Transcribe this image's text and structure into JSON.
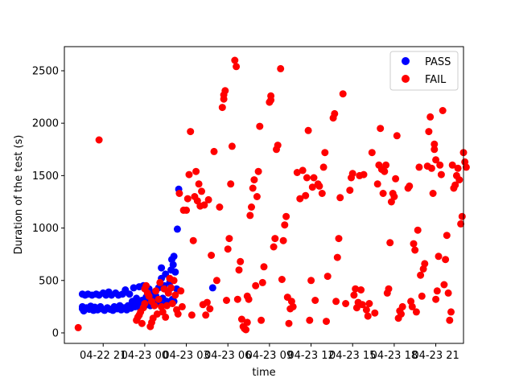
{
  "chart_data": {
    "type": "scatter",
    "title": "",
    "xlabel": "time",
    "ylabel": "Duration of the test (s)",
    "x_ticks": [
      "04-22 21",
      "04-23 00",
      "04-23 03",
      "04-23 06",
      "04-23 09",
      "04-23 12",
      "04-23 15",
      "04-23 18",
      "04-23 21"
    ],
    "x_tick_hours": [
      0,
      3,
      6,
      9,
      12,
      15,
      18,
      21,
      24
    ],
    "x_range_hours": [
      -2.8,
      26.0
    ],
    "y_ticks": [
      0,
      500,
      1000,
      1500,
      2000,
      2500
    ],
    "ylim": [
      -100,
      2730
    ],
    "legend": {
      "placement": "upper-right",
      "entries": [
        "PASS",
        "FAIL"
      ]
    },
    "series": [
      {
        "name": "PASS",
        "color": "#0000ff",
        "points": [
          [
            -1.5,
            230
          ],
          [
            -1.5,
            250
          ],
          [
            -1.5,
            370
          ],
          [
            -1.4,
            210
          ],
          [
            -1.3,
            360
          ],
          [
            -1.2,
            240
          ],
          [
            -1.1,
            370
          ],
          [
            -1.0,
            225
          ],
          [
            -0.9,
            255
          ],
          [
            -0.8,
            360
          ],
          [
            -0.7,
            215
          ],
          [
            -0.6,
            245
          ],
          [
            -0.5,
            370
          ],
          [
            -0.4,
            220
          ],
          [
            -0.3,
            360
          ],
          [
            -0.2,
            250
          ],
          [
            -0.1,
            230
          ],
          [
            0.0,
            380
          ],
          [
            0.1,
            215
          ],
          [
            0.2,
            360
          ],
          [
            0.3,
            240
          ],
          [
            0.4,
            390
          ],
          [
            0.5,
            225
          ],
          [
            0.6,
            360
          ],
          [
            0.7,
            215
          ],
          [
            0.8,
            250
          ],
          [
            0.9,
            380
          ],
          [
            1.0,
            230
          ],
          [
            1.1,
            360
          ],
          [
            1.2,
            260
          ],
          [
            1.3,
            220
          ],
          [
            1.4,
            370
          ],
          [
            1.5,
            240
          ],
          [
            1.6,
            410
          ],
          [
            1.7,
            220
          ],
          [
            1.8,
            260
          ],
          [
            1.9,
            370
          ],
          [
            2.0,
            235
          ],
          [
            2.1,
            300
          ],
          [
            2.2,
            430
          ],
          [
            2.3,
            250
          ],
          [
            2.4,
            330
          ],
          [
            2.5,
            280
          ],
          [
            2.6,
            440
          ],
          [
            2.7,
            230
          ],
          [
            2.8,
            310
          ],
          [
            2.9,
            450
          ],
          [
            3.0,
            260
          ],
          [
            3.1,
            340
          ],
          [
            3.2,
            290
          ],
          [
            3.3,
            420
          ],
          [
            3.4,
            260
          ],
          [
            3.5,
            320
          ],
          [
            3.6,
            380
          ],
          [
            3.7,
            270
          ],
          [
            3.8,
            350
          ],
          [
            3.9,
            300
          ],
          [
            4.0,
            430
          ],
          [
            4.1,
            280
          ],
          [
            4.2,
            520
          ],
          [
            4.2,
            620
          ],
          [
            4.3,
            330
          ],
          [
            4.4,
            450
          ],
          [
            4.5,
            560
          ],
          [
            4.6,
            300
          ],
          [
            4.7,
            390
          ],
          [
            4.8,
            480
          ],
          [
            4.9,
            600
          ],
          [
            4.95,
            700
          ],
          [
            5.0,
            320
          ],
          [
            5.05,
            650
          ],
          [
            5.1,
            730
          ],
          [
            5.2,
            580
          ],
          [
            5.3,
            420
          ],
          [
            5.35,
            990
          ],
          [
            5.45,
            1370
          ],
          [
            4.6,
            280
          ],
          [
            5.1,
            300
          ],
          [
            7.9,
            430
          ]
        ]
      },
      {
        "name": "FAIL",
        "color": "#ff0000",
        "points": [
          [
            -1.8,
            50
          ],
          [
            -0.3,
            1840
          ],
          [
            2.4,
            120
          ],
          [
            2.5,
            150
          ],
          [
            2.6,
            170
          ],
          [
            2.7,
            200
          ],
          [
            2.8,
            90
          ],
          [
            2.9,
            240
          ],
          [
            3.0,
            280
          ],
          [
            3.0,
            420
          ],
          [
            3.1,
            450
          ],
          [
            3.2,
            380
          ],
          [
            3.3,
            350
          ],
          [
            3.4,
            60
          ],
          [
            3.5,
            100
          ],
          [
            3.5,
            300
          ],
          [
            3.6,
            140
          ],
          [
            3.7,
            260
          ],
          [
            3.8,
            400
          ],
          [
            3.9,
            180
          ],
          [
            4.0,
            320
          ],
          [
            4.1,
            480
          ],
          [
            4.2,
            250
          ],
          [
            4.3,
            200
          ],
          [
            4.4,
            420
          ],
          [
            4.5,
            150
          ],
          [
            4.6,
            260
          ],
          [
            4.7,
            380
          ],
          [
            4.8,
            520
          ],
          [
            4.9,
            430
          ],
          [
            5.0,
            280
          ],
          [
            5.1,
            500
          ],
          [
            5.2,
            360
          ],
          [
            5.3,
            220
          ],
          [
            5.4,
            180
          ],
          [
            5.5,
            1330
          ],
          [
            5.6,
            400
          ],
          [
            5.7,
            250
          ],
          [
            5.8,
            1170
          ],
          [
            6.0,
            1170
          ],
          [
            6.1,
            1280
          ],
          [
            6.2,
            1510
          ],
          [
            6.3,
            1920
          ],
          [
            6.4,
            170
          ],
          [
            6.5,
            880
          ],
          [
            6.6,
            1300
          ],
          [
            6.7,
            1540
          ],
          [
            6.8,
            1260
          ],
          [
            6.9,
            1420
          ],
          [
            7.0,
            1210
          ],
          [
            7.1,
            1350
          ],
          [
            7.2,
            270
          ],
          [
            7.3,
            1220
          ],
          [
            7.4,
            170
          ],
          [
            7.5,
            290
          ],
          [
            7.6,
            1270
          ],
          [
            7.7,
            230
          ],
          [
            7.8,
            740
          ],
          [
            8.0,
            1730
          ],
          [
            8.2,
            500
          ],
          [
            8.4,
            1200
          ],
          [
            8.6,
            2150
          ],
          [
            8.7,
            2230
          ],
          [
            8.8,
            2310
          ],
          [
            8.9,
            310
          ],
          [
            9.0,
            800
          ],
          [
            9.1,
            900
          ],
          [
            9.2,
            1420
          ],
          [
            9.3,
            1780
          ],
          [
            9.5,
            2600
          ],
          [
            9.6,
            2540
          ],
          [
            9.7,
            320
          ],
          [
            9.8,
            600
          ],
          [
            9.9,
            680
          ],
          [
            10.0,
            130
          ],
          [
            10.1,
            60
          ],
          [
            10.2,
            40
          ],
          [
            10.3,
            30
          ],
          [
            10.4,
            100
          ],
          [
            10.5,
            320
          ],
          [
            10.6,
            1120
          ],
          [
            10.7,
            1200
          ],
          [
            10.8,
            1380
          ],
          [
            10.9,
            1460
          ],
          [
            11.0,
            450
          ],
          [
            11.1,
            1300
          ],
          [
            11.2,
            1540
          ],
          [
            11.3,
            1970
          ],
          [
            11.4,
            120
          ],
          [
            11.5,
            480
          ],
          [
            11.6,
            630
          ],
          [
            12.0,
            2200
          ],
          [
            12.1,
            2260
          ],
          [
            12.3,
            820
          ],
          [
            12.4,
            900
          ],
          [
            12.5,
            1750
          ],
          [
            12.6,
            1790
          ],
          [
            12.8,
            2520
          ],
          [
            12.9,
            510
          ],
          [
            13.0,
            880
          ],
          [
            13.1,
            1030
          ],
          [
            13.2,
            1110
          ],
          [
            13.3,
            340
          ],
          [
            13.4,
            90
          ],
          [
            13.5,
            230
          ],
          [
            13.6,
            300
          ],
          [
            13.7,
            250
          ],
          [
            14.0,
            1530
          ],
          [
            14.2,
            1280
          ],
          [
            14.4,
            1550
          ],
          [
            14.6,
            1310
          ],
          [
            14.7,
            1480
          ],
          [
            14.8,
            1930
          ],
          [
            14.9,
            120
          ],
          [
            15.0,
            500
          ],
          [
            15.1,
            1390
          ],
          [
            15.2,
            1480
          ],
          [
            15.3,
            310
          ],
          [
            15.5,
            1420
          ],
          [
            15.6,
            1400
          ],
          [
            15.8,
            1330
          ],
          [
            15.9,
            1580
          ],
          [
            16.0,
            1720
          ],
          [
            16.1,
            110
          ],
          [
            16.2,
            540
          ],
          [
            16.6,
            2050
          ],
          [
            16.7,
            2090
          ],
          [
            16.8,
            300
          ],
          [
            16.9,
            720
          ],
          [
            17.0,
            900
          ],
          [
            17.1,
            1290
          ],
          [
            17.3,
            2280
          ],
          [
            17.5,
            280
          ],
          [
            17.8,
            1360
          ],
          [
            17.9,
            1480
          ],
          [
            18.0,
            1520
          ],
          [
            18.1,
            360
          ],
          [
            18.2,
            420
          ],
          [
            18.3,
            240
          ],
          [
            18.4,
            290
          ],
          [
            18.5,
            1500
          ],
          [
            18.6,
            410
          ],
          [
            18.7,
            270
          ],
          [
            18.8,
            1510
          ],
          [
            19.0,
            220
          ],
          [
            19.1,
            160
          ],
          [
            19.2,
            280
          ],
          [
            19.4,
            1720
          ],
          [
            19.6,
            190
          ],
          [
            19.8,
            1420
          ],
          [
            19.9,
            1600
          ],
          [
            20.0,
            1950
          ],
          [
            20.1,
            1560
          ],
          [
            20.2,
            1330
          ],
          [
            20.3,
            1540
          ],
          [
            20.4,
            1600
          ],
          [
            20.5,
            380
          ],
          [
            20.6,
            420
          ],
          [
            20.7,
            860
          ],
          [
            20.8,
            1250
          ],
          [
            20.9,
            1330
          ],
          [
            21.0,
            1300
          ],
          [
            21.1,
            1470
          ],
          [
            21.2,
            1880
          ],
          [
            21.3,
            140
          ],
          [
            21.4,
            210
          ],
          [
            21.5,
            180
          ],
          [
            21.6,
            250
          ],
          [
            22.0,
            1380
          ],
          [
            22.1,
            1400
          ],
          [
            22.2,
            300
          ],
          [
            22.3,
            250
          ],
          [
            22.4,
            850
          ],
          [
            22.5,
            790
          ],
          [
            22.6,
            200
          ],
          [
            22.7,
            980
          ],
          [
            22.8,
            1580
          ],
          [
            22.9,
            550
          ],
          [
            23.0,
            350
          ],
          [
            23.1,
            610
          ],
          [
            23.2,
            660
          ],
          [
            23.4,
            1590
          ],
          [
            23.5,
            1920
          ],
          [
            23.6,
            2060
          ],
          [
            23.7,
            1570
          ],
          [
            23.8,
            1330
          ],
          [
            23.9,
            1800
          ],
          [
            24.0,
            320
          ],
          [
            24.1,
            400
          ],
          [
            24.2,
            730
          ],
          [
            24.3,
            1600
          ],
          [
            24.4,
            1510
          ],
          [
            24.5,
            2120
          ],
          [
            24.6,
            460
          ],
          [
            24.7,
            700
          ],
          [
            24.8,
            930
          ],
          [
            24.9,
            380
          ],
          [
            25.0,
            120
          ],
          [
            25.1,
            200
          ],
          [
            25.2,
            1600
          ],
          [
            25.3,
            1380
          ],
          [
            25.4,
            1410
          ],
          [
            25.5,
            1500
          ],
          [
            25.6,
            1570
          ],
          [
            25.7,
            1460
          ],
          [
            25.8,
            1040
          ],
          [
            25.9,
            1110
          ],
          [
            26.0,
            1720
          ],
          [
            26.1,
            1630
          ],
          [
            26.2,
            1580
          ],
          [
            23.9,
            1750
          ],
          [
            24.0,
            1650
          ],
          [
            8.7,
            2270
          ],
          [
            12.1,
            2220
          ],
          [
            10.4,
            350
          ]
        ]
      }
    ]
  }
}
